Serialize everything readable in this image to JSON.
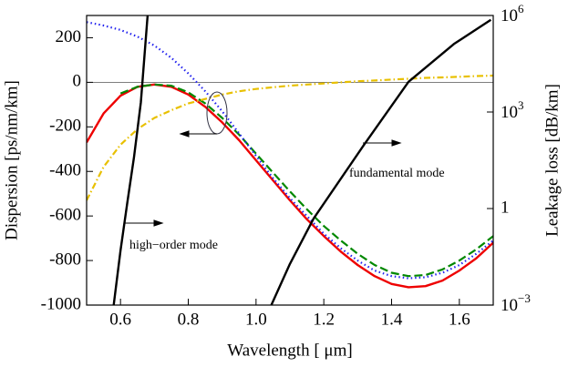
{
  "chart_data": {
    "type": "line",
    "xlabel": "Wavelength [ μm]",
    "ylabel": "Dispersion [ps/nm/km]",
    "y2label": "Leakage loss [dB/km]",
    "xlim": [
      0.5,
      1.7
    ],
    "ylim": [
      -1000,
      300
    ],
    "y2lim": [
      0.001,
      1000000
    ],
    "y2scale": "log",
    "xticks": [
      0.6,
      0.8,
      {
        "value": 1,
        "label": "1.0"
      },
      1.2,
      1.4,
      1.6
    ],
    "yticks": [
      200,
      0,
      -200,
      -400,
      -600,
      -800,
      -1000
    ],
    "y2ticks": [
      {
        "value": 0.001,
        "label": "10",
        "exponent": "−3"
      },
      1,
      {
        "value": 1000,
        "label": "10",
        "exponent": "3"
      },
      {
        "value": 1000000,
        "label": "10",
        "exponent": "6"
      }
    ],
    "annotations": [
      "fundamental mode",
      "high−order mode"
    ],
    "series": [
      {
        "color": "#ee0000",
        "dash": "solid",
        "x": [
          0.5,
          0.55,
          0.6,
          0.65,
          0.7,
          0.75,
          0.8,
          0.85,
          0.9,
          0.95,
          1.0,
          1.05,
          1.1,
          1.15,
          1.2,
          1.25,
          1.3,
          1.35,
          1.4,
          1.45,
          1.5,
          1.55,
          1.6,
          1.65,
          1.7
        ],
        "values": [
          -270,
          -140,
          -60,
          -20,
          -10,
          -20,
          -55,
          -110,
          -180,
          -260,
          -350,
          -440,
          -530,
          -615,
          -690,
          -760,
          -820,
          -870,
          -905,
          -920,
          -915,
          -890,
          -845,
          -790,
          -720
        ]
      },
      {
        "color": "#008800",
        "dash": "dashed",
        "x": [
          0.5,
          0.55,
          0.6,
          0.65,
          0.7,
          0.75,
          0.8,
          0.85,
          0.9,
          0.95,
          1.0,
          1.05,
          1.1,
          1.15,
          1.2,
          1.25,
          1.3,
          1.35,
          1.4,
          1.45,
          1.5,
          1.55,
          1.6,
          1.65,
          1.7
        ],
        "values": [
          null,
          null,
          -50,
          -20,
          -10,
          -15,
          -45,
          -95,
          -160,
          -235,
          -320,
          -405,
          -490,
          -570,
          -645,
          -710,
          -770,
          -820,
          -855,
          -870,
          -865,
          -840,
          -800,
          -750,
          -690
        ]
      },
      {
        "color": "#2222ee",
        "dash": "dotted",
        "x": [
          0.5,
          0.55,
          0.6,
          0.65,
          0.7,
          0.75,
          0.8,
          0.85,
          0.9,
          0.95,
          1.0,
          1.05,
          1.1,
          1.15,
          1.2,
          1.25,
          1.3,
          1.35,
          1.4,
          1.45,
          1.5,
          1.55,
          1.6,
          1.65,
          1.7
        ],
        "values": [
          270,
          255,
          235,
          205,
          165,
          110,
          40,
          -40,
          -130,
          -230,
          -330,
          -430,
          -520,
          -600,
          -680,
          -745,
          -800,
          -845,
          -870,
          -880,
          -875,
          -855,
          -820,
          -770,
          -710
        ]
      },
      {
        "color": "#e8c000",
        "dash": "dashdot",
        "x": [
          0.5,
          0.55,
          0.6,
          0.65,
          0.7,
          0.75,
          0.8,
          0.85,
          0.9,
          0.95,
          1.0,
          1.05,
          1.1,
          1.15,
          1.2,
          1.25,
          1.3,
          1.35,
          1.4,
          1.45,
          1.5,
          1.55,
          1.6,
          1.65,
          1.7
        ],
        "values": [
          -530,
          -380,
          -280,
          -210,
          -160,
          -125,
          -95,
          -75,
          -55,
          -40,
          -30,
          -22,
          -15,
          -10,
          -5,
          0,
          5,
          8,
          12,
          16,
          20,
          22,
          25,
          28,
          30
        ]
      },
      {
        "color": "#000000",
        "dash": "solid",
        "axis": "y2",
        "x": [
          0.58,
          0.6,
          0.62,
          0.64,
          0.66,
          0.68
        ],
        "values": [
          0.001,
          0.05,
          1.5,
          40,
          2000,
          1000000
        ]
      },
      {
        "color": "#000000",
        "dash": "solid",
        "axis": "y2",
        "x": [
          1.045,
          1.1,
          1.17,
          1.317,
          1.45,
          1.584,
          1.693
        ],
        "values": [
          0.001,
          0.019,
          0.49,
          91,
          8700,
          130000,
          730000
        ]
      }
    ]
  }
}
